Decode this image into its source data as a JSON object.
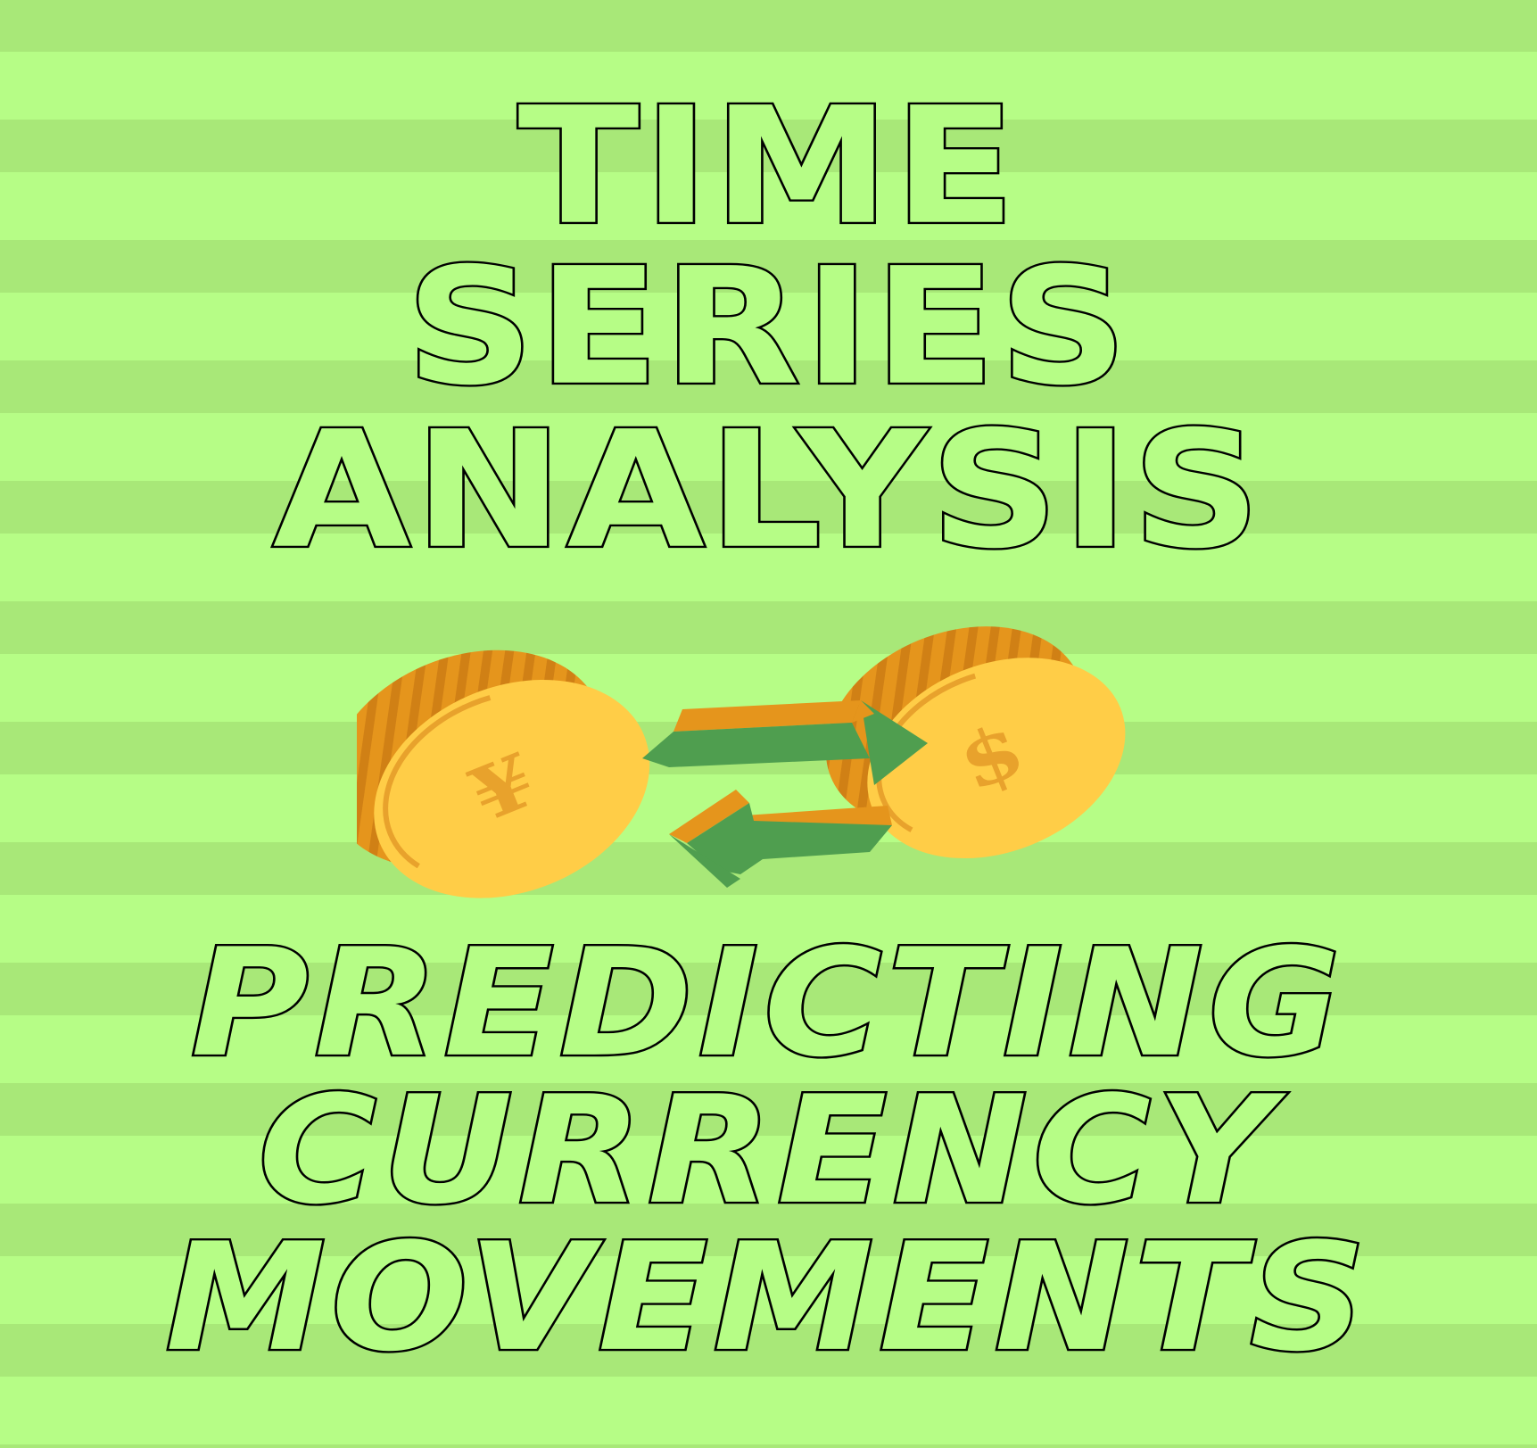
{
  "title": {
    "line1": "TIME",
    "line2": "SERIES",
    "line3": "ANALYSIS"
  },
  "subtitle": {
    "line1": "PREDICTING",
    "line2": "CURRENCY",
    "line3": "MOVEMENTS"
  },
  "illustration": {
    "left_coin_symbol": "¥",
    "right_coin_symbol": "$",
    "icons": [
      "yen-coin-icon",
      "dollar-coin-icon",
      "exchange-arrows-icon"
    ]
  },
  "colors": {
    "stripe_light": "#b6fd86",
    "stripe_dark": "#a8e878",
    "text_outline": "#000000",
    "coin_face": "#ffcd47",
    "coin_edge": "#e5951c",
    "coin_edge_dark": "#d08015",
    "arrow_green": "#4f9e4f",
    "arrow_orange": "#e5951c"
  }
}
